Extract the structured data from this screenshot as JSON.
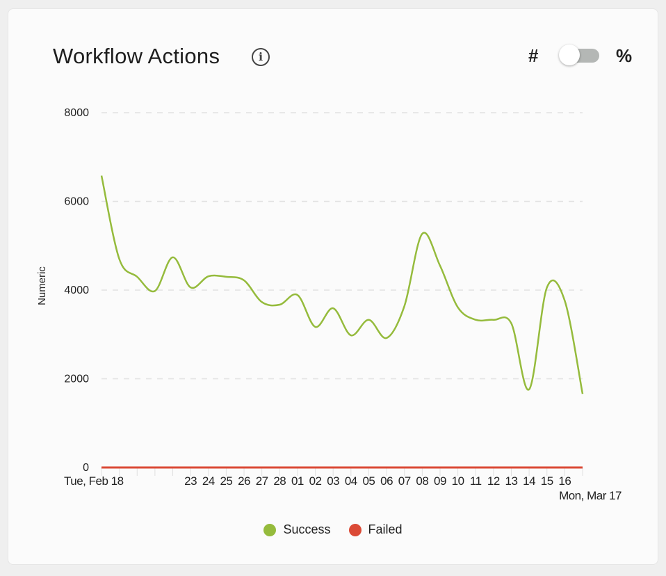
{
  "header": {
    "title": "Workflow Actions",
    "info_icon": "info-icon",
    "toggle_left": "#",
    "toggle_right": "%",
    "toggle_state": "numeric"
  },
  "chart_data": {
    "type": "line",
    "title": "Workflow Actions",
    "ylabel": "Numeric",
    "xlabel": "",
    "ylim": [
      0,
      8000
    ],
    "yticks": [
      "0",
      "2000",
      "4000",
      "6000",
      "8000"
    ],
    "grid": true,
    "legend": "bottom",
    "x": [
      "2025-02-18",
      "2025-02-19",
      "2025-02-20",
      "2025-02-21",
      "2025-02-22",
      "2025-02-23",
      "2025-02-24",
      "2025-02-25",
      "2025-02-26",
      "2025-02-27",
      "2025-02-28",
      "2025-03-01",
      "2025-03-02",
      "2025-03-03",
      "2025-03-04",
      "2025-03-05",
      "2025-03-06",
      "2025-03-07",
      "2025-03-08",
      "2025-03-09",
      "2025-03-10",
      "2025-03-11",
      "2025-03-12",
      "2025-03-13",
      "2025-03-14",
      "2025-03-15",
      "2025-03-16",
      "2025-03-17"
    ],
    "xtick_labels": [
      "Tue, Feb 18",
      "",
      "",
      "",
      "",
      "23",
      "24",
      "25",
      "26",
      "27",
      "28",
      "01",
      "02",
      "03",
      "04",
      "05",
      "06",
      "07",
      "08",
      "09",
      "10",
      "11",
      "12",
      "13",
      "14",
      "15",
      "16",
      "Mon, Mar 17"
    ],
    "series": [
      {
        "name": "Success",
        "color": "#95bb3c",
        "values": [
          6580,
          4700,
          4300,
          3980,
          4740,
          4060,
          4310,
          4300,
          4220,
          3730,
          3670,
          3890,
          3170,
          3590,
          2980,
          3330,
          2920,
          3640,
          5270,
          4550,
          3610,
          3330,
          3330,
          3250,
          1760,
          4060,
          3760,
          1660
        ]
      },
      {
        "name": "Failed",
        "color": "#db4a36",
        "values": [
          0,
          0,
          0,
          0,
          0,
          0,
          0,
          0,
          0,
          0,
          0,
          0,
          0,
          0,
          0,
          0,
          0,
          0,
          0,
          0,
          0,
          0,
          0,
          0,
          0,
          0,
          0,
          0
        ]
      }
    ]
  }
}
